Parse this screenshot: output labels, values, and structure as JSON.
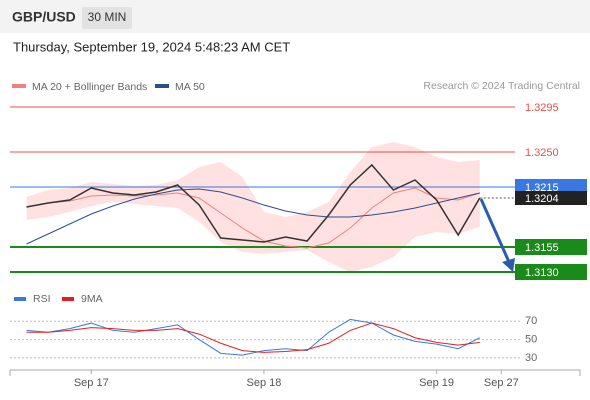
{
  "header": {
    "symbol": "GBP/USD",
    "timeframe": "30 MIN",
    "datetime": "Thursday, September 19, 2024 5:48:23 AM CET",
    "credit": "Research © 2024 Trading Central"
  },
  "chart_data": [
    {
      "type": "line",
      "x": [
        -9,
        -6,
        -3,
        0,
        3,
        6,
        9,
        12,
        15,
        18,
        21,
        24,
        27,
        30,
        33,
        36,
        39,
        42,
        45,
        48,
        51,
        54
      ],
      "xlim": [
        -11.3,
        58.9
      ],
      "xticks": [
        {
          "value": 0,
          "label": "Sep 17"
        },
        {
          "value": 24,
          "label": "Sep 18"
        },
        {
          "value": 48,
          "label": "Sep 19"
        },
        {
          "value": 57,
          "label": "Sep 27"
        }
      ],
      "ylim": [
        1.3122,
        1.3307
      ],
      "price": {
        "color": "#333333",
        "values": [
          1.3195,
          1.3199,
          1.3202,
          1.3214,
          1.3209,
          1.3207,
          1.321,
          1.3217,
          1.3197,
          1.3164,
          1.3162,
          1.316,
          1.3165,
          1.3161,
          1.3187,
          1.3217,
          1.3237,
          1.3212,
          1.3222,
          1.3202,
          1.3167,
          1.3204
        ]
      },
      "band": {
        "color": "#ffd9d9",
        "upper": [
          1.3205,
          1.3212,
          1.3214,
          1.322,
          1.3218,
          1.3216,
          1.3217,
          1.3222,
          1.3235,
          1.324,
          1.3225,
          1.319,
          1.3185,
          1.319,
          1.32,
          1.323,
          1.3255,
          1.326,
          1.3255,
          1.3245,
          1.324,
          1.3242
        ],
        "lower": [
          1.3182,
          1.3185,
          1.319,
          1.3196,
          1.32,
          1.3198,
          1.3196,
          1.3194,
          1.318,
          1.316,
          1.315,
          1.3148,
          1.315,
          1.3152,
          1.314,
          1.313,
          1.3135,
          1.3145,
          1.3165,
          1.317,
          1.3168,
          1.3175
        ]
      },
      "series": [
        {
          "name": "MA 20 + Bollinger Bands",
          "color": "#f08080",
          "values": [
            1.3195,
            1.3199,
            1.3201,
            1.3206,
            1.3207,
            1.3206,
            1.3207,
            1.3209,
            1.3204,
            1.3189,
            1.3174,
            1.3161,
            1.3156,
            1.3154,
            1.3159,
            1.3174,
            1.3194,
            1.3209,
            1.3214,
            1.3204,
            1.3202,
            1.3209
          ]
        },
        {
          "name": "MA 50",
          "color": "#2a4f8f",
          "values": [
            1.3158,
            1.3168,
            1.3178,
            1.3188,
            1.3196,
            1.3203,
            1.3208,
            1.3212,
            1.3213,
            1.321,
            1.3204,
            1.3197,
            1.3191,
            1.3187,
            1.3185,
            1.3185,
            1.3187,
            1.319,
            1.3194,
            1.3199,
            1.3204,
            1.3209
          ]
        }
      ],
      "levels": [
        {
          "value": 1.3295,
          "color": "#e8504a",
          "style": "text"
        },
        {
          "value": 1.325,
          "label": "1.3250",
          "color": "#e8504a",
          "style": "text"
        },
        {
          "value": 1.3215,
          "color": "#3a78e0",
          "style": "box"
        },
        {
          "value": 1.3155,
          "color": "#1a8a1a",
          "style": "box"
        },
        {
          "value": 1.313,
          "label": "1.3130",
          "color": "#1a8a1a",
          "style": "box"
        }
      ],
      "last_price": {
        "value": 1.3204,
        "color": "#222222"
      }
    },
    {
      "type": "line",
      "xlim": [
        -11.3,
        58.9
      ],
      "ylim": [
        19,
        79
      ],
      "yticks": [
        70,
        50,
        30
      ],
      "series": [
        {
          "name": "RSI",
          "color": "#3a78e0",
          "values": [
            60,
            58,
            62,
            68,
            60,
            58,
            62,
            66,
            50,
            35,
            33,
            38,
            40,
            38,
            58,
            72,
            68,
            55,
            48,
            45,
            40,
            52
          ]
        },
        {
          "name": "9MA",
          "color": "#e02020",
          "values": [
            58,
            58,
            60,
            63,
            62,
            60,
            60,
            62,
            56,
            46,
            38,
            36,
            37,
            39,
            46,
            60,
            68,
            62,
            52,
            47,
            44,
            47
          ]
        }
      ]
    }
  ]
}
